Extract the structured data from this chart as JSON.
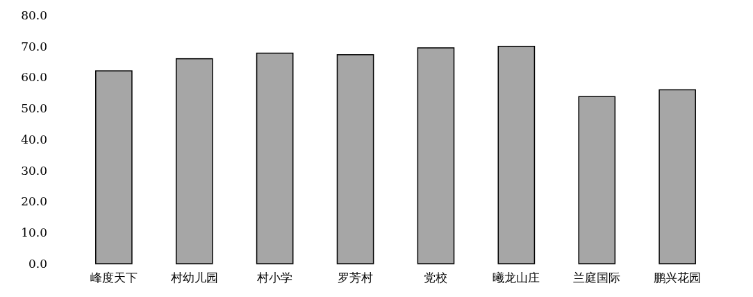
{
  "chart_data": {
    "type": "bar",
    "categories": [
      "峰度天下",
      "村幼儿园",
      "村小学",
      "罗芳村",
      "党校",
      "曦龙山庄",
      "兰庭国际",
      "鹏兴花园"
    ],
    "values": [
      62.1,
      66.0,
      67.8,
      67.3,
      69.5,
      70.0,
      53.8,
      56.0
    ],
    "color": "#a6a6a6",
    "ylim": [
      0,
      80
    ],
    "yticks": [
      {
        "value": 0,
        "label": "0.0"
      },
      {
        "value": 10,
        "label": "10.0"
      },
      {
        "value": 20,
        "label": "20.0"
      },
      {
        "value": 30,
        "label": "30.0"
      },
      {
        "value": 40,
        "label": "40.0"
      },
      {
        "value": 50,
        "label": "50.0"
      },
      {
        "value": 60,
        "label": "60.0"
      },
      {
        "value": 70,
        "label": "70.0"
      },
      {
        "value": 80,
        "label": "80.0"
      }
    ],
    "grid": false
  }
}
